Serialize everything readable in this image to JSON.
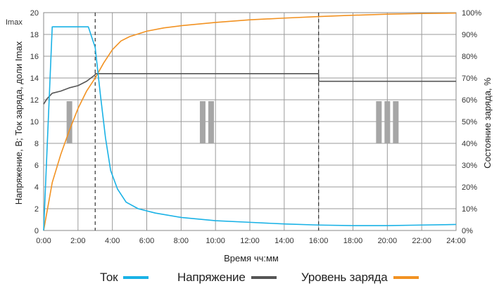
{
  "chart_data": {
    "type": "line",
    "x_label": "Время чч:мм",
    "y_left_label": "Напряжение, В; Ток заряда, доли Imax",
    "y_left_top_label": "Imax",
    "y_right_label": "Состояние заряда, %",
    "x_ticks": [
      "0:00",
      "2:00",
      "4:00",
      "6:00",
      "8:00",
      "10:00",
      "12:00",
      "14:00",
      "16:00",
      "18:00",
      "20:00",
      "22:00",
      "24:00"
    ],
    "x_range_hours": [
      0,
      24
    ],
    "y_left_ticks": [
      "0",
      "2",
      "4",
      "6",
      "8",
      "10",
      "12",
      "14",
      "16",
      "18",
      "20"
    ],
    "y_left_range": [
      0,
      20
    ],
    "y_right_ticks": [
      "0%",
      "10%",
      "20%",
      "30%",
      "40%",
      "50%",
      "60%",
      "70%",
      "80%",
      "90%",
      "100%"
    ],
    "y_right_range": [
      0,
      100
    ],
    "grid": true,
    "stage_dividers_hours": [
      3,
      16
    ],
    "stage_markers": [
      {
        "label": "I",
        "center_hours": 1.5
      },
      {
        "label": "II",
        "center_hours": 9.5
      },
      {
        "label": "III",
        "center_hours": 20
      }
    ],
    "series": [
      {
        "name": "Ток",
        "axis": "left",
        "color": "#1ab2e6",
        "x_hours": [
          0,
          0.5,
          1,
          2,
          2.6,
          3.0,
          3.3,
          3.6,
          3.9,
          4.3,
          4.8,
          5.5,
          6.5,
          8,
          10,
          12,
          14,
          16,
          18,
          20,
          22,
          24
        ],
        "values": [
          0,
          18.7,
          18.7,
          18.7,
          18.7,
          16.8,
          12.5,
          8.5,
          5.5,
          3.8,
          2.6,
          2.0,
          1.6,
          1.2,
          0.9,
          0.75,
          0.6,
          0.5,
          0.45,
          0.45,
          0.5,
          0.55
        ]
      },
      {
        "name": "Напряжение",
        "axis": "left",
        "color": "#555555",
        "x_hours": [
          0,
          0.2,
          0.5,
          1,
          1.5,
          2,
          2.5,
          3.0,
          3.01,
          16,
          16.01,
          24
        ],
        "values": [
          11.6,
          12.1,
          12.6,
          12.8,
          13.1,
          13.3,
          13.7,
          14.3,
          14.4,
          14.4,
          13.7,
          13.7
        ]
      },
      {
        "name": "Уровень заряда",
        "axis": "right",
        "color": "#f29222",
        "x_hours": [
          0,
          0.5,
          1,
          1.5,
          2,
          2.5,
          3,
          3.5,
          4,
          4.5,
          5,
          6,
          7,
          8,
          10,
          12,
          14,
          16,
          18,
          20,
          22,
          24
        ],
        "values": [
          0,
          22,
          35,
          46,
          56,
          64,
          70,
          77,
          83,
          87,
          89,
          91.5,
          93,
          94,
          95.5,
          96.7,
          97.5,
          98.2,
          98.8,
          99.3,
          99.6,
          99.8
        ]
      }
    ]
  },
  "legend": [
    {
      "label": "Ток",
      "color": "#1ab2e6"
    },
    {
      "label": "Напряжение",
      "color": "#555555"
    },
    {
      "label": "Уровень заряда",
      "color": "#f29222"
    }
  ]
}
